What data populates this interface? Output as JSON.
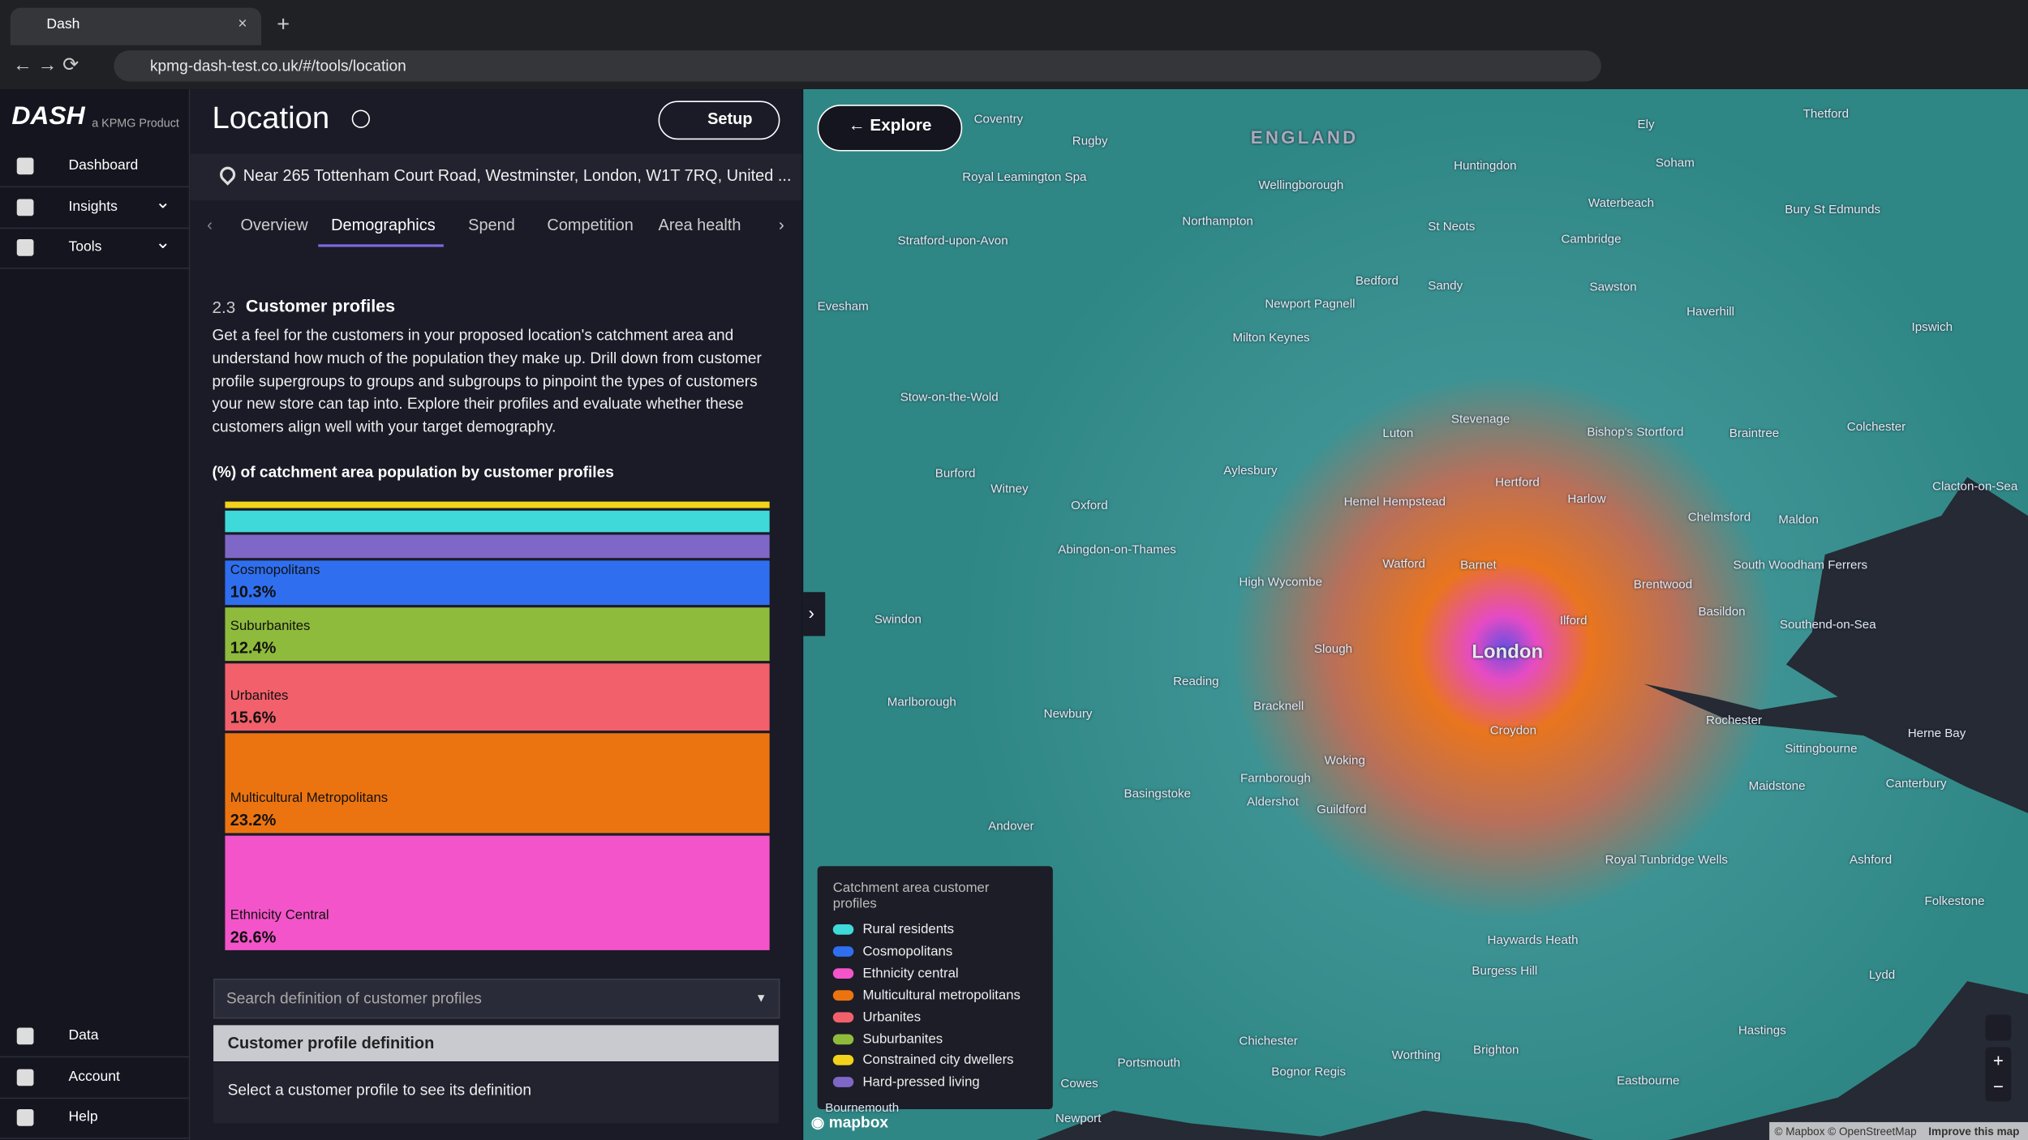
{
  "browser": {
    "tab": "Dash",
    "url": "kpmg-dash-test.co.uk/#/tools/location"
  },
  "sidebar": {
    "logo": "DASH",
    "tagline": "a KPMG Product",
    "nav": [
      "Dashboard",
      "Insights",
      "Tools"
    ],
    "bottom_nav": [
      "Data",
      "Account",
      "Help"
    ]
  },
  "header": {
    "title": "Location",
    "setup": "Setup",
    "explore": "Explore",
    "address": "Near 265 Tottenham Court Road, Westminster, London, W1T 7RQ, United ..."
  },
  "tabs": [
    "Overview",
    "Demographics",
    "Spend",
    "Competition",
    "Area health"
  ],
  "section": {
    "number": "2.3",
    "title": "Customer profiles",
    "text": "Get a feel for the customers in your proposed location's catchment area and understand how much of the population they make up. Drill down from customer profile supergroups to groups and subgroups to pinpoint the types of customers your new store can tap into. Explore their profiles and evaluate whether these customers align well with your target demography."
  },
  "chart_data": {
    "type": "stacked-column",
    "title": "(%) of catchment area population by customer profiles",
    "categories": [
      null,
      null,
      null,
      "Cosmopolitans",
      "Suburbanites",
      "Urbanites",
      "Multicultural Metropolitans",
      "Ethnicity Central"
    ],
    "values": [
      1.5,
      5,
      5.4,
      10.3,
      12.4,
      15.6,
      23.2,
      26.6
    ],
    "value_labels": [
      null,
      null,
      null,
      "10.3%",
      "12.4%",
      "15.6%",
      "23.2%",
      "26.6%"
    ],
    "colors": [
      "#f2d21b",
      "#3fd9d9",
      "#7f67c7",
      "#2f6fef",
      "#8fbb3c",
      "#f2606b",
      "#ec7410",
      "#f454c9"
    ]
  },
  "search": {
    "placeholder": "Search definition of customer profiles"
  },
  "definition": {
    "title": "Customer profile definition",
    "text": "Select a customer profile to see its definition"
  },
  "legend": {
    "title": "Catchment area customer profiles",
    "items": [
      {
        "name": "Rural residents",
        "color": "#3fd9d9"
      },
      {
        "name": "Cosmopolitans",
        "color": "#2f6fef"
      },
      {
        "name": "Ethnicity central",
        "color": "#f454c9"
      },
      {
        "name": "Multicultural metropolitans",
        "color": "#ec7410"
      },
      {
        "name": "Urbanites",
        "color": "#f2606b"
      },
      {
        "name": "Suburbanites",
        "color": "#8fbb3c"
      },
      {
        "name": "Constrained city dwellers",
        "color": "#f2d21b"
      },
      {
        "name": "Hard-pressed living",
        "color": "#7f67c7"
      }
    ]
  },
  "map": {
    "labels": [
      "Coventry",
      "ENGLAND",
      "Rugby",
      "Ely",
      "Thetford",
      "Royal Leamington Spa",
      "Huntingdon",
      "Soham",
      "Wellingborough",
      "Waterbeach",
      "St Neots",
      "Cambridge",
      "Bury St Edmunds",
      "Northampton",
      "Stratford-upon-Avon",
      "Bedford",
      "Sandy",
      "Sawston",
      "Newport Pagnell",
      "Haverhill",
      "Ipswich",
      "Evesham",
      "Milton Keynes",
      "Stow-on-the-Wold",
      "Luton",
      "Stevenage",
      "Bishop's Stortford",
      "Braintree",
      "Colchester",
      "Aylesbury",
      "Burford",
      "Witney",
      "Hertford",
      "Harlow",
      "Clacton-on-Sea",
      "Oxford",
      "Hemel Hempstead",
      "Chelmsford",
      "Maldon",
      "Abingdon-on-Thames",
      "Watford",
      "Barnet",
      "South Woodham Ferrers",
      "High Wycombe",
      "Brentwood",
      "Swindon",
      "Ilford",
      "London",
      "Basildon",
      "Southend-on-Sea",
      "Slough",
      "Reading",
      "Bracknell",
      "Marlborough",
      "Newbury",
      "Croydon",
      "Rochester",
      "Sittingbourne",
      "Herne Bay",
      "Woking",
      "Farnborough",
      "Basingstoke",
      "Aldershot",
      "Guildford",
      "Maidstone",
      "Canterbury",
      "Andover",
      "Royal Tunbridge Wells",
      "Ashford",
      "Folkestone",
      "Haywards Heath",
      "Burgess Hill",
      "Lydd",
      "Hastings",
      "Chichester",
      "Worthing",
      "Brighton",
      "Portsmouth",
      "Bognor Regis",
      "Cowes",
      "Eastbourne",
      "Bournemouth",
      "Newport"
    ],
    "attribution": "© Mapbox © OpenStreetMap",
    "improve": "Improve this map",
    "logo": "mapbox"
  }
}
